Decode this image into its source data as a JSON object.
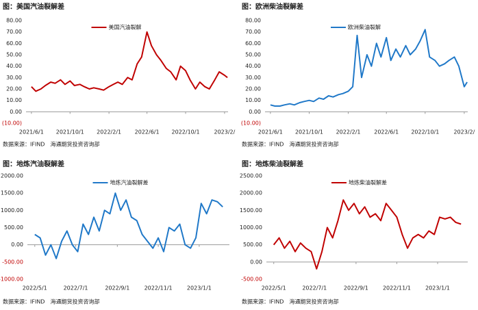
{
  "chart_data": [
    {
      "type": "line",
      "title": "图：美国汽油裂解差",
      "source": "数据来源：IFIND　海通期货投资咨询部",
      "x": [
        "2021/6/1",
        "2021/6/15",
        "2021/7/1",
        "2021/7/15",
        "2021/8/1",
        "2021/8/15",
        "2021/9/1",
        "2021/9/15",
        "2021/10/1",
        "2021/10/15",
        "2021/11/1",
        "2021/11/15",
        "2021/12/1",
        "2021/12/15",
        "2022/1/1",
        "2022/1/15",
        "2022/2/1",
        "2022/2/15",
        "2022/3/1",
        "2022/3/15",
        "2022/4/1",
        "2022/4/15",
        "2022/5/1",
        "2022/5/15",
        "2022/6/1",
        "2022/6/15",
        "2022/7/1",
        "2022/7/15",
        "2022/8/1",
        "2022/8/15",
        "2022/9/1",
        "2022/9/15",
        "2022/10/1",
        "2022/10/15",
        "2022/11/1",
        "2022/11/15",
        "2022/12/1",
        "2022/12/15",
        "2023/1/1",
        "2023/1/15",
        "2023/2/1",
        "2023/2/10"
      ],
      "series": [
        {
          "name": "美国汽油裂解",
          "color": "#c00000",
          "values": [
            22,
            18,
            20,
            23,
            26,
            25,
            28,
            24,
            27,
            23,
            24,
            22,
            20,
            21,
            20,
            19,
            22,
            24,
            26,
            24,
            30,
            28,
            42,
            48,
            70,
            58,
            50,
            45,
            38,
            35,
            28,
            40,
            36,
            28,
            20,
            26,
            22,
            20,
            28,
            35,
            32,
            30
          ]
        }
      ],
      "xlim": [
        "2021/5/15",
        "2023/2/12"
      ],
      "xticks": [
        "2021/6/1",
        "2021/10/1",
        "2022/2/1",
        "2022/6/1",
        "2022/10/1",
        {
          "value": "2023/2/1",
          "label": "2023/2/"
        }
      ],
      "ylim": [
        -10,
        80
      ],
      "yticks": [
        {
          "value": -10,
          "label": "(10.00)"
        },
        {
          "value": 0,
          "label": "0.00"
        },
        {
          "value": 10,
          "label": "10.00"
        },
        {
          "value": 20,
          "label": "20.00"
        },
        {
          "value": 30,
          "label": "30.00"
        },
        {
          "value": 40,
          "label": "40.00"
        },
        {
          "value": 50,
          "label": "50.00"
        },
        {
          "value": 60,
          "label": "60.00"
        },
        {
          "value": 70,
          "label": "70.00"
        },
        {
          "value": 80,
          "label": "80.00"
        }
      ]
    },
    {
      "type": "line",
      "title": "图：欧洲柴油裂解差",
      "source": "数据来源：IFIND　海通期货投资咨询部",
      "x": [
        "2021/6/1",
        "2021/6/15",
        "2021/7/1",
        "2021/7/15",
        "2021/8/1",
        "2021/8/15",
        "2021/9/1",
        "2021/9/15",
        "2021/10/1",
        "2021/10/15",
        "2021/11/1",
        "2021/11/15",
        "2021/12/1",
        "2021/12/15",
        "2022/1/1",
        "2022/1/15",
        "2022/2/1",
        "2022/2/15",
        "2022/3/1",
        "2022/3/15",
        "2022/4/1",
        "2022/4/15",
        "2022/5/1",
        "2022/5/15",
        "2022/6/1",
        "2022/6/15",
        "2022/7/1",
        "2022/7/15",
        "2022/8/1",
        "2022/8/15",
        "2022/9/1",
        "2022/9/15",
        "2022/10/1",
        "2022/10/15",
        "2022/11/1",
        "2022/11/15",
        "2022/12/1",
        "2022/12/15",
        "2023/1/1",
        "2023/1/15",
        "2023/2/1",
        "2023/2/10"
      ],
      "series": [
        {
          "name": "欧洲柴油裂解",
          "color": "#1f78c8",
          "values": [
            6,
            5,
            5,
            6,
            7,
            6,
            8,
            9,
            10,
            9,
            12,
            11,
            14,
            13,
            15,
            16,
            18,
            22,
            67,
            30,
            50,
            40,
            60,
            48,
            65,
            45,
            55,
            48,
            58,
            50,
            55,
            62,
            72,
            48,
            45,
            40,
            42,
            45,
            48,
            40,
            22,
            26
          ]
        }
      ],
      "xlim": [
        "2021/5/15",
        "2023/2/12"
      ],
      "xticks": [
        "2021/6/1",
        "2021/10/1",
        "2022/2/1",
        "2022/6/1",
        "2022/10/1",
        {
          "value": "2023/2/1",
          "label": "2023/2/"
        }
      ],
      "ylim": [
        -10,
        80
      ],
      "yticks": [
        {
          "value": -10,
          "label": "(10.00)"
        },
        {
          "value": 0,
          "label": "0.00"
        },
        {
          "value": 10,
          "label": "10.00"
        },
        {
          "value": 20,
          "label": "20.00"
        },
        {
          "value": 30,
          "label": "30.00"
        },
        {
          "value": 40,
          "label": "40.00"
        },
        {
          "value": 50,
          "label": "50.00"
        },
        {
          "value": 60,
          "label": "60.00"
        },
        {
          "value": 70,
          "label": "70.00"
        },
        {
          "value": 80,
          "label": "80.00"
        }
      ]
    },
    {
      "type": "line",
      "title": "图：地炼汽油裂解差",
      "source": "数据来源：IFIND　海通期货投资咨询部",
      "x": [
        "2022/5/1",
        "2022/5/9",
        "2022/5/17",
        "2022/5/25",
        "2022/6/2",
        "2022/6/10",
        "2022/6/18",
        "2022/6/26",
        "2022/7/4",
        "2022/7/12",
        "2022/7/20",
        "2022/7/28",
        "2022/8/5",
        "2022/8/13",
        "2022/8/21",
        "2022/8/29",
        "2022/9/6",
        "2022/9/14",
        "2022/9/22",
        "2022/9/30",
        "2022/10/8",
        "2022/10/16",
        "2022/10/24",
        "2022/11/1",
        "2022/11/9",
        "2022/11/17",
        "2022/11/25",
        "2022/12/3",
        "2022/12/11",
        "2022/12/19",
        "2022/12/27",
        "2023/1/4",
        "2023/1/12",
        "2023/1/20",
        "2023/1/28",
        "2023/2/5"
      ],
      "series": [
        {
          "name": "地炼汽油裂解差",
          "color": "#1f78c8",
          "values": [
            300,
            200,
            -300,
            0,
            -400,
            100,
            400,
            0,
            -200,
            600,
            300,
            800,
            400,
            1000,
            900,
            1500,
            1000,
            1300,
            800,
            700,
            300,
            100,
            -100,
            200,
            -200,
            500,
            400,
            600,
            0,
            -100,
            200,
            1200,
            900,
            1300,
            1250,
            1100
          ]
        }
      ],
      "xlim": [
        "2022/4/20",
        "2023/2/15"
      ],
      "xticks": [
        "2022/5/1",
        "2022/7/1",
        "2022/9/1",
        "2022/11/1",
        "2023/1/1"
      ],
      "ylim": [
        -1000,
        2000
      ],
      "yticks": [
        {
          "value": -1000,
          "label": "-1000.00"
        },
        {
          "value": -500,
          "label": "-500.00"
        },
        {
          "value": 0,
          "label": "0.00"
        },
        {
          "value": 500,
          "label": "500.00"
        },
        {
          "value": 1000,
          "label": "1000.00"
        },
        {
          "value": 1500,
          "label": "1500.00"
        },
        {
          "value": 2000,
          "label": "2000.00"
        }
      ]
    },
    {
      "type": "line",
      "title": "图：地炼柴油裂解差",
      "source": "数据来源：IFIND　海通期货投资咨询部",
      "x": [
        "2022/5/1",
        "2022/5/9",
        "2022/5/17",
        "2022/5/25",
        "2022/6/2",
        "2022/6/10",
        "2022/6/18",
        "2022/6/26",
        "2022/7/4",
        "2022/7/12",
        "2022/7/20",
        "2022/7/28",
        "2022/8/5",
        "2022/8/13",
        "2022/8/21",
        "2022/8/29",
        "2022/9/6",
        "2022/9/14",
        "2022/9/22",
        "2022/9/30",
        "2022/10/8",
        "2022/10/16",
        "2022/10/24",
        "2022/11/1",
        "2022/11/9",
        "2022/11/17",
        "2022/11/25",
        "2022/12/3",
        "2022/12/11",
        "2022/12/19",
        "2022/12/27",
        "2023/1/4",
        "2023/1/12",
        "2023/1/20",
        "2023/1/28",
        "2023/2/5"
      ],
      "series": [
        {
          "name": "地炼柴油裂解差",
          "color": "#c00000",
          "values": [
            500,
            700,
            400,
            600,
            300,
            550,
            400,
            300,
            -200,
            300,
            1000,
            700,
            1200,
            1800,
            1500,
            1700,
            1400,
            1600,
            1300,
            1400,
            1200,
            1700,
            1500,
            1300,
            800,
            400,
            700,
            800,
            700,
            900,
            800,
            1300,
            1250,
            1300,
            1150,
            1100
          ]
        }
      ],
      "xlim": [
        "2022/4/20",
        "2023/2/15"
      ],
      "xticks": [
        "2022/5/1",
        "2022/7/1",
        "2022/9/1",
        "2022/11/1",
        "2023/1/1"
      ],
      "ylim": [
        -500,
        2500
      ],
      "yticks": [
        {
          "value": -500,
          "label": "-500.00"
        },
        {
          "value": 0,
          "label": "0.00"
        },
        {
          "value": 500,
          "label": "500.00"
        },
        {
          "value": 1000,
          "label": "1000.00"
        },
        {
          "value": 1500,
          "label": "1500.00"
        },
        {
          "value": 2000,
          "label": "2000.00"
        },
        {
          "value": 2500,
          "label": "2500.00"
        }
      ]
    }
  ]
}
